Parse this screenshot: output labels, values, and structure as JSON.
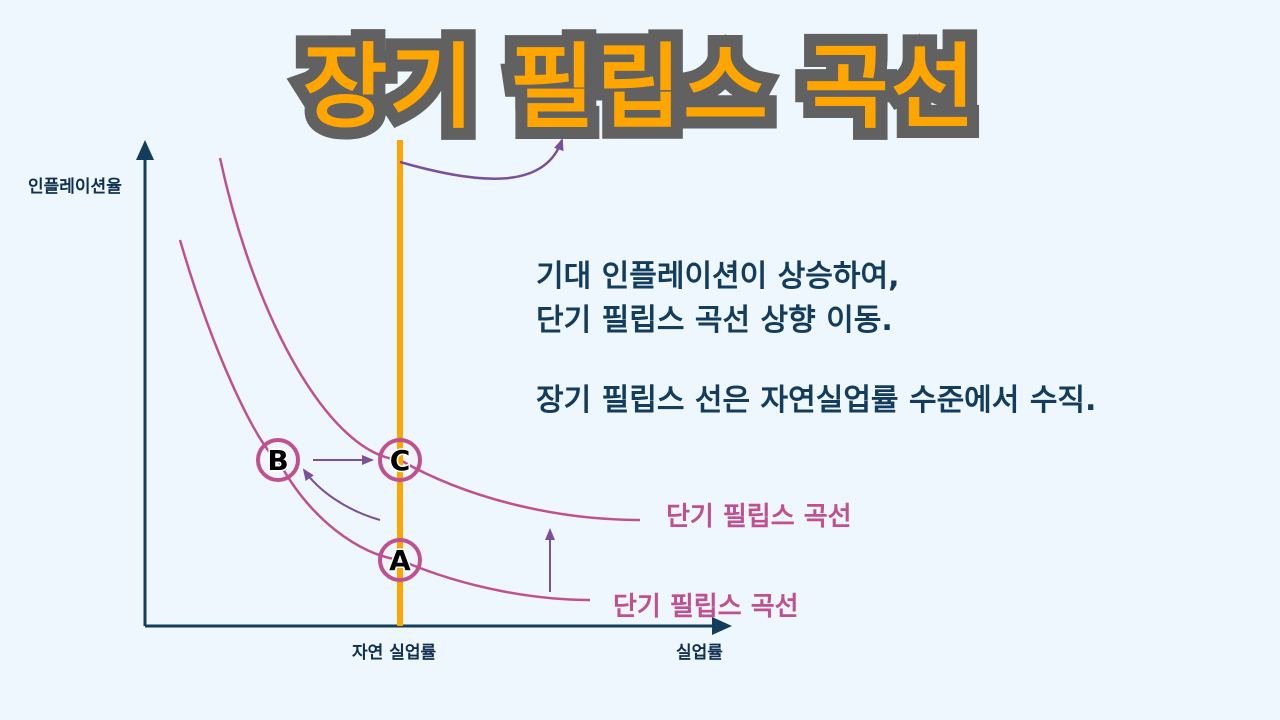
{
  "title": "장기 필립스 곡선",
  "explanation": {
    "line1": "기대 인플레이션이 상승하여,",
    "line2": "단기 필립스 곡선 상향 이동.",
    "line3": "장기 필립스 선은 자연실업률 수준에서 수직."
  },
  "axes": {
    "y_label": "인플레이션율",
    "x_label": "실업률",
    "natural_rate_label": "자연 실업률"
  },
  "curves": {
    "upper_label": "단기 필립스 곡선",
    "lower_label": "단기 필립스 곡선"
  },
  "points": {
    "a": "A",
    "b": "B",
    "c": "C"
  },
  "colors": {
    "background": "#eef7fd",
    "axis": "#143c5c",
    "curve": "#c0508f",
    "long_run_line": "#ffa500",
    "arrow": "#7b4f9a",
    "title_fill": "#ffa500",
    "title_stroke": "#616161"
  }
}
